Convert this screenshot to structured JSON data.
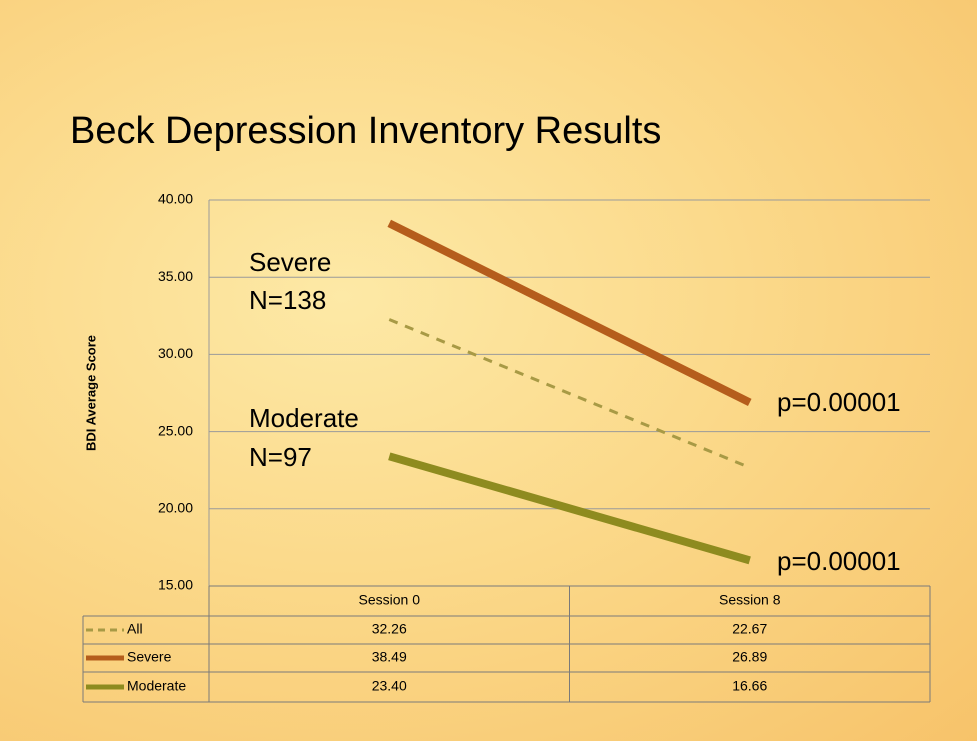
{
  "chart_data": {
    "type": "line",
    "title": "Beck Depression Inventory Results",
    "y_label": "BDI Average Score",
    "categories": [
      "Session 0",
      "Session 8"
    ],
    "series": [
      {
        "name": "All",
        "color": "#a89a45",
        "linestyle": "dashed",
        "values": [
          32.26,
          22.67
        ]
      },
      {
        "name": "Severe",
        "color": "#b55d1c",
        "linestyle": "solid",
        "values": [
          38.49,
          26.89
        ]
      },
      {
        "name": "Moderate",
        "color": "#8e8b1f",
        "linestyle": "solid",
        "values": [
          23.4,
          16.66
        ],
        "value_labels": [
          "23.40",
          "16.66"
        ]
      }
    ],
    "ylim": [
      15,
      40
    ],
    "yticks": [
      {
        "value": 15,
        "label": "15.00"
      },
      {
        "value": 20,
        "label": "20.00"
      },
      {
        "value": 25,
        "label": "25.00"
      },
      {
        "value": 30,
        "label": "30.00"
      },
      {
        "value": 35,
        "label": "35.00"
      },
      {
        "value": 40,
        "label": "40.00"
      }
    ],
    "grid": true,
    "data_table": true,
    "annotations": [
      "Severe",
      "N=138",
      "Moderate",
      "N=97",
      "p=0.00001",
      "p=0.00001"
    ]
  }
}
